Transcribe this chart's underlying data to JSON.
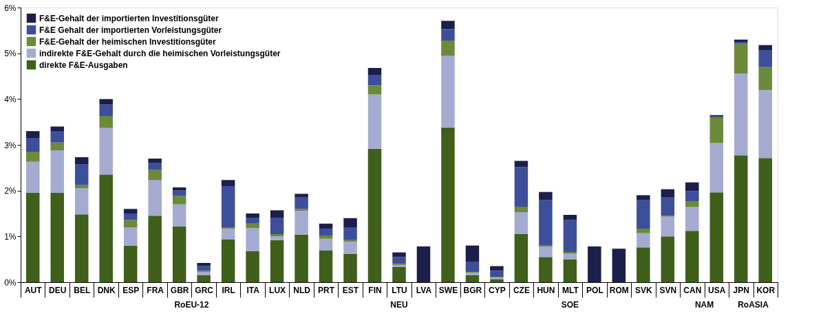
{
  "chart_data": {
    "type": "bar",
    "stacked": true,
    "legend": "top left",
    "grid": false,
    "categories": [
      "AUT",
      "DEU",
      "BEL",
      "DNK",
      "ESP",
      "FRA",
      "GBR",
      "GRC",
      "IRL",
      "ITA",
      "LUX",
      "NLD",
      "PRT",
      "EST",
      "FIN",
      "LTU",
      "LVA",
      "SWE",
      "BGR",
      "CYP",
      "CZE",
      "HUN",
      "MLT",
      "POL",
      "ROM",
      "SVK",
      "SVN",
      "CAN",
      "USA",
      "JPN",
      "KOR"
    ],
    "ylim": [
      0,
      6
    ],
    "yticks": [
      {
        "value": 0,
        "label": "0%"
      },
      {
        "value": 1,
        "label": "1%"
      },
      {
        "value": 2,
        "label": "2%"
      },
      {
        "value": 3,
        "label": "3%"
      },
      {
        "value": 4,
        "label": "4%"
      },
      {
        "value": 5,
        "label": "5%"
      },
      {
        "value": 6,
        "label": "6%"
      }
    ],
    "series": [
      {
        "name": "direkte F&E-Ausgaben",
        "color": "#3f5f1a",
        "values": [
          1.95,
          1.95,
          1.48,
          2.35,
          0.8,
          1.45,
          1.22,
          0.15,
          0.93,
          0.68,
          0.92,
          1.04,
          0.69,
          0.62,
          2.91,
          0.33,
          null,
          3.38,
          0.15,
          0.06,
          1.05,
          0.55,
          0.5,
          null,
          null,
          0.76,
          1.0,
          1.12,
          1.96,
          2.77,
          2.71
        ]
      },
      {
        "name": "indirekte F&E-Gehalt durch die heimischen Vorleistungsgüter",
        "color": "#a5abd0",
        "values": [
          0.68,
          0.93,
          0.57,
          1.02,
          0.4,
          0.78,
          0.48,
          0.07,
          0.24,
          0.5,
          0.08,
          0.52,
          0.26,
          0.26,
          1.19,
          0.04,
          null,
          1.57,
          0.05,
          0.04,
          0.48,
          0.23,
          0.12,
          null,
          null,
          0.31,
          0.43,
          0.52,
          1.08,
          1.79,
          1.49
        ]
      },
      {
        "name": "F&E-Gehalt der heimischen Investitionsgüter",
        "color": "#6b8a3a",
        "values": [
          0.22,
          0.17,
          0.07,
          0.26,
          0.16,
          0.22,
          0.18,
          0.03,
          0.03,
          0.1,
          0.05,
          0.04,
          0.07,
          0.04,
          0.2,
          0.03,
          null,
          0.33,
          0.02,
          0.02,
          0.12,
          0.02,
          0.04,
          null,
          null,
          0.1,
          0.02,
          0.13,
          0.56,
          0.65,
          0.5
        ]
      },
      {
        "name": "F&E Gehalt der importierten Vorleistungsgüter",
        "color": "#3d4f9a",
        "values": [
          0.3,
          0.25,
          0.45,
          0.25,
          0.14,
          0.15,
          0.12,
          0.1,
          0.9,
          0.12,
          0.36,
          0.25,
          0.15,
          0.28,
          0.23,
          0.15,
          null,
          0.25,
          0.23,
          0.13,
          0.86,
          0.99,
          0.7,
          null,
          null,
          0.62,
          0.41,
          0.22,
          0.02,
          0.04,
          0.36
        ]
      },
      {
        "name": "F&E-Gehalt der importierten Investitionsgüter",
        "color": "#1c1f4a",
        "values": [
          0.15,
          0.1,
          0.16,
          0.12,
          0.1,
          0.1,
          0.07,
          0.07,
          0.13,
          0.1,
          0.16,
          0.08,
          0.11,
          0.2,
          0.15,
          0.1,
          0.78,
          0.18,
          0.35,
          0.1,
          0.14,
          0.18,
          0.11,
          0.78,
          0.73,
          0.11,
          0.17,
          0.19,
          0.03,
          0.05,
          0.12
        ]
      }
    ],
    "annotations": [
      "RoEU-12",
      "NEU",
      "SOE",
      "NAM",
      "RoASIA"
    ]
  }
}
